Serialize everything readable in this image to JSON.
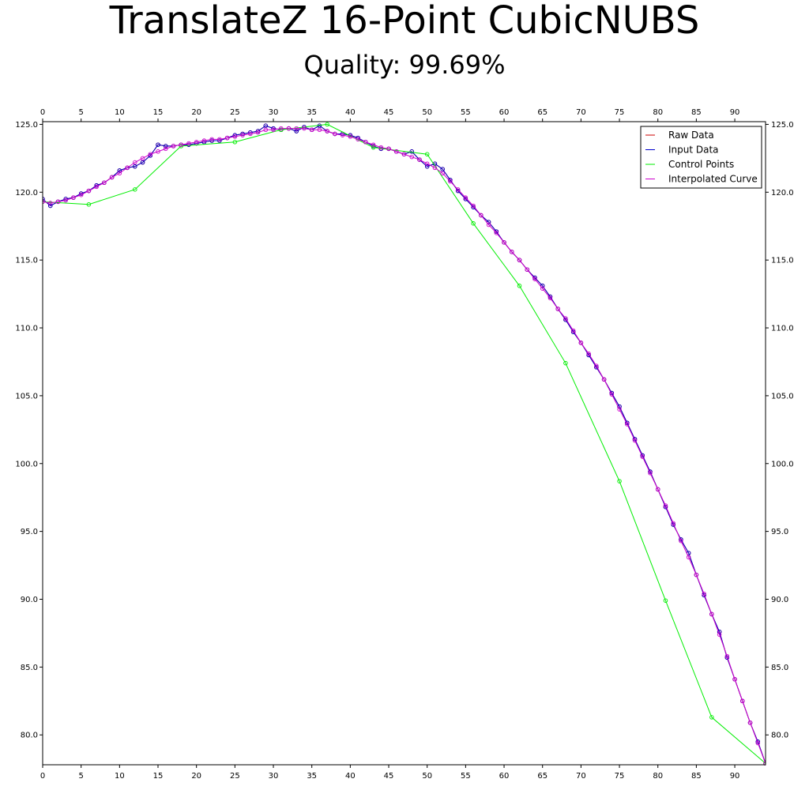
{
  "header": {
    "title": "TranslateZ 16-Point CubicNUBS",
    "subtitle": "Quality: 99.69%"
  },
  "chart_data": {
    "type": "line",
    "title": "TranslateZ 16-Point CubicNUBS",
    "subtitle": "Quality: 99.69%",
    "xlabel": "",
    "ylabel": "",
    "xlim": [
      0,
      94
    ],
    "ylim": [
      77.8,
      125.2
    ],
    "x_ticks": [
      0,
      5,
      10,
      15,
      20,
      25,
      30,
      35,
      40,
      45,
      50,
      55,
      60,
      65,
      70,
      75,
      80,
      85,
      90
    ],
    "y_ticks": [
      80.0,
      85.0,
      90.0,
      95.0,
      100.0,
      105.0,
      110.0,
      115.0,
      120.0,
      125.0
    ],
    "y_tick_labels": [
      "80.0",
      "85.0",
      "90.0",
      "95.0",
      "100.0",
      "105.0",
      "110.0",
      "115.0",
      "120.0",
      "125.0"
    ],
    "grid": false,
    "legend_position": "top-right",
    "series": [
      {
        "name": "Raw Data",
        "color": "#cc0000",
        "marker": "circle",
        "values": [
          119.5,
          119.0,
          119.3,
          119.5,
          119.6,
          119.9,
          120.1,
          120.5,
          120.7,
          121.1,
          121.6,
          121.8,
          121.9,
          122.2,
          122.7,
          123.5,
          123.4,
          123.4,
          123.5,
          123.5,
          123.6,
          123.7,
          123.8,
          123.8,
          124.0,
          124.2,
          124.3,
          124.4,
          124.5,
          124.9,
          124.7,
          124.6,
          124.7,
          124.5,
          124.8,
          124.6,
          124.9,
          124.5,
          124.3,
          124.3,
          124.2,
          124.0,
          123.7,
          123.4,
          123.2,
          123.2,
          123.0,
          122.8,
          123.0,
          122.4,
          121.9,
          122.1,
          121.7,
          120.9,
          120.1,
          119.5,
          118.9,
          118.3,
          117.8,
          117.1,
          116.3,
          115.6,
          115.0,
          114.3,
          113.7,
          113.1,
          112.3,
          111.4,
          110.6,
          109.7,
          108.9,
          108.0,
          107.1,
          106.2,
          105.2,
          104.2,
          103.0,
          101.8,
          100.6,
          99.4,
          98.1,
          96.8,
          95.5,
          94.4,
          93.4,
          91.8,
          90.3,
          88.9,
          87.6,
          85.7,
          84.1,
          82.5,
          80.9,
          79.5,
          77.9
        ]
      },
      {
        "name": "Input Data",
        "color": "#0000cc",
        "marker": "circle",
        "values": [
          119.5,
          119.0,
          119.3,
          119.5,
          119.6,
          119.9,
          120.1,
          120.5,
          120.7,
          121.1,
          121.6,
          121.8,
          121.9,
          122.2,
          122.7,
          123.5,
          123.4,
          123.4,
          123.5,
          123.5,
          123.6,
          123.7,
          123.8,
          123.8,
          124.0,
          124.2,
          124.3,
          124.4,
          124.5,
          124.9,
          124.7,
          124.6,
          124.7,
          124.5,
          124.8,
          124.6,
          124.9,
          124.5,
          124.3,
          124.3,
          124.2,
          124.0,
          123.7,
          123.4,
          123.2,
          123.2,
          123.0,
          122.8,
          123.0,
          122.4,
          121.9,
          122.1,
          121.7,
          120.9,
          120.1,
          119.5,
          118.9,
          118.3,
          117.8,
          117.1,
          116.3,
          115.6,
          115.0,
          114.3,
          113.7,
          113.1,
          112.3,
          111.4,
          110.6,
          109.7,
          108.9,
          108.0,
          107.1,
          106.2,
          105.2,
          104.2,
          103.0,
          101.8,
          100.6,
          99.4,
          98.1,
          96.8,
          95.5,
          94.4,
          93.4,
          91.8,
          90.3,
          88.9,
          87.6,
          85.7,
          84.1,
          82.5,
          80.9,
          79.5,
          77.9
        ]
      },
      {
        "name": "Control Points",
        "color": "#00ee00",
        "marker": "circle",
        "x": [
          0,
          6,
          12,
          18,
          25,
          31,
          37,
          43,
          50,
          56,
          62,
          68,
          75,
          81,
          87,
          94
        ],
        "values": [
          119.3,
          119.1,
          120.2,
          123.4,
          123.7,
          124.6,
          125.0,
          123.3,
          122.8,
          117.7,
          113.1,
          107.4,
          98.7,
          89.9,
          81.3,
          77.9
        ]
      },
      {
        "name": "Interpolated Curve",
        "color": "#cc00cc",
        "marker": "circle",
        "values": [
          119.3,
          119.2,
          119.3,
          119.4,
          119.6,
          119.8,
          120.1,
          120.4,
          120.7,
          121.1,
          121.4,
          121.8,
          122.2,
          122.5,
          122.8,
          123.0,
          123.2,
          123.4,
          123.5,
          123.6,
          123.7,
          123.8,
          123.9,
          123.9,
          124.0,
          124.1,
          124.2,
          124.3,
          124.4,
          124.6,
          124.6,
          124.7,
          124.7,
          124.7,
          124.7,
          124.6,
          124.6,
          124.5,
          124.3,
          124.2,
          124.1,
          123.9,
          123.7,
          123.5,
          123.3,
          123.2,
          123.0,
          122.8,
          122.6,
          122.4,
          122.1,
          121.8,
          121.4,
          120.8,
          120.2,
          119.6,
          119.0,
          118.3,
          117.6,
          117.0,
          116.3,
          115.6,
          115.0,
          114.3,
          113.6,
          112.9,
          112.2,
          111.4,
          110.7,
          109.8,
          108.9,
          108.1,
          107.2,
          106.2,
          105.1,
          104.0,
          102.9,
          101.7,
          100.5,
          99.3,
          98.1,
          96.9,
          95.6,
          94.3,
          93.1,
          91.8,
          90.4,
          88.9,
          87.4,
          85.8,
          84.1,
          82.5,
          80.9,
          79.4,
          77.9
        ]
      }
    ]
  }
}
